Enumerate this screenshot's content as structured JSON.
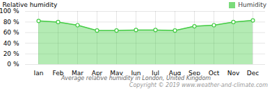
{
  "chart_data": {
    "type": "area",
    "xlabel": "Average relative humidity in London, United Kingdom",
    "ylabel": "Relative humidity",
    "annotations": [
      "Copyright © 2019 www.weather-and-climate.com"
    ],
    "categories": [
      "Jan",
      "Feb",
      "Mar",
      "Apr",
      "May",
      "Jun",
      "Jul",
      "Aug",
      "Sep",
      "Oct",
      "Nov",
      "Dec"
    ],
    "series": [
      {
        "name": "Humidity",
        "color": "#44cc44",
        "marker": "circle",
        "values": [
          82,
          80,
          74,
          64,
          64,
          65,
          65,
          64,
          72,
          74,
          80,
          83
        ]
      }
    ],
    "ylim": [
      0,
      100
    ],
    "yticks": [
      {
        "value": 0,
        "label": "0 %"
      },
      {
        "value": 20,
        "label": "20 %"
      },
      {
        "value": 40,
        "label": "40 %"
      },
      {
        "value": 60,
        "label": "60 %"
      },
      {
        "value": 80,
        "label": "80 %"
      },
      {
        "value": 100,
        "label": "100 %"
      }
    ],
    "grid": true,
    "legend": "upper right"
  }
}
